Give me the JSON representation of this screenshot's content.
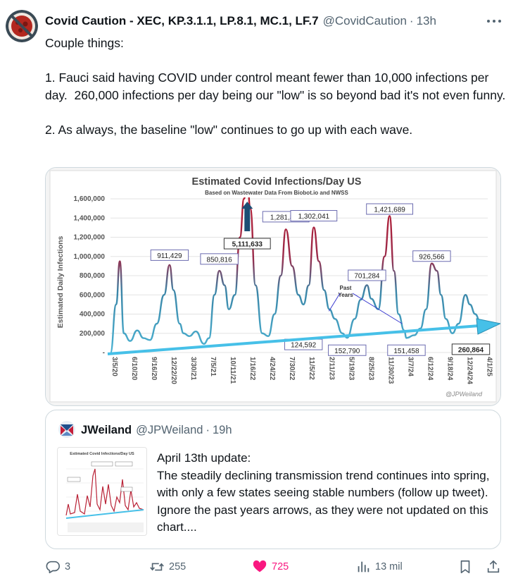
{
  "tweet": {
    "author_name": "Covid Caution - XEC, KP.3.1.1, LP.8.1, MC.1, LF.7",
    "author_handle": "@CovidCaution",
    "separator": "·",
    "timestamp": "13h",
    "text": "Couple things:\n\n1. Fauci said having COVID under control meant fewer than 10,000 infections per day.  260,000 infections per day being our \"low\" is so beyond bad it's not even funny.\n\n2. As always, the baseline \"low\" continues to go up with each wave."
  },
  "chart_data": {
    "type": "line",
    "title": "Estimated Covid Infections/Day US",
    "subtitle": "Based on Wastewater Data From Biobot.io and NWSS",
    "ylabel": "Estimated Daily Infections",
    "ylim": [
      0,
      1600000
    ],
    "yticks": [
      "1,600,000",
      "1,400,000",
      "1,200,000",
      "1,000,000",
      "800,000",
      "600,000",
      "400,000",
      "200,000",
      "-"
    ],
    "xticks": [
      "3/5/20",
      "6/10/20",
      "9/16/20",
      "12/22/20",
      "3/30/21",
      "7/5/21",
      "10/11/21",
      "1/16/22",
      "4/24/22",
      "7/30/22",
      "11/5/22",
      "2/11/23",
      "5/19/23",
      "8/25/23",
      "11/30/23",
      "3/7/24",
      "6/12/24",
      "9/18/24",
      "12/24/24",
      "4/1/25"
    ],
    "series": [
      {
        "x": [
          "3/5/20",
          "4/2/20",
          "4/20/20",
          "5/10/20",
          "6/10/20",
          "7/15/20",
          "8/15/20",
          "9/16/20",
          "10/20/20",
          "11/25/20",
          "12/22/20",
          "1/10/21",
          "2/10/21",
          "3/1/21",
          "3/30/21",
          "5/1/21",
          "6/10/21",
          "7/5/21",
          "8/1/21",
          "8/25/21",
          "9/20/21",
          "10/11/21",
          "11/10/21",
          "12/5/21",
          "12/25/21",
          "1/10/22",
          "1/25/22",
          "2/20/22",
          "3/25/22",
          "4/24/22",
          "5/25/22",
          "6/25/22",
          "7/20/22",
          "8/20/22",
          "9/20/22",
          "10/15/22",
          "11/10/22",
          "12/5/22",
          "12/30/22",
          "1/25/23",
          "2/20/23",
          "3/20/23",
          "4/25/23",
          "5/19/23",
          "6/25/23",
          "7/25/23",
          "8/25/23",
          "9/15/23",
          "10/20/23",
          "11/20/23",
          "12/15/23",
          "1/5/24",
          "1/28/24",
          "2/25/24",
          "3/7/24",
          "4/15/24",
          "5/15/24",
          "6/12/24",
          "7/10/24",
          "8/5/24",
          "8/25/24",
          "9/18/24",
          "10/20/24",
          "11/20/24",
          "12/24/24",
          "1/15/25",
          "2/10/25",
          "3/10/25",
          "4/1/25",
          "4/13/25"
        ],
        "values": [
          0,
          500000,
          950000,
          200000,
          120000,
          230000,
          150000,
          130000,
          300000,
          600000,
          911429,
          650000,
          300000,
          200000,
          170000,
          220000,
          90000,
          150000,
          600000,
          850816,
          700000,
          450000,
          600000,
          1200000,
          1600000,
          1800000,
          1500000,
          700000,
          200000,
          170000,
          400000,
          800000,
          1281837,
          900000,
          600000,
          500000,
          700000,
          1302041,
          950000,
          650000,
          450000,
          350000,
          200000,
          152790,
          350000,
          550000,
          701284,
          560000,
          450000,
          1000000,
          1421689,
          850000,
          400000,
          230000,
          151458,
          180000,
          250000,
          450000,
          926566,
          850000,
          600000,
          350000,
          200000,
          300000,
          600000,
          500000,
          400000,
          300000,
          270000,
          260864
        ]
      }
    ],
    "data_labels": [
      "911,429",
      "850,816",
      "5,111,633",
      "1,281,837",
      "1,302,041",
      "1,421,689",
      "701,284",
      "926,566",
      "124,592",
      "152,790",
      "151,458",
      "260,864"
    ],
    "annotation": "Past Years",
    "credit": "@JPWeiland",
    "trend": "baseline rising arrow",
    "colors": {
      "low": "#4bb3d3",
      "high": "#c0182b",
      "arrow": "#46c0e8",
      "big_arrow": "#1d4e74"
    }
  },
  "quote": {
    "author_name": "JWeiland",
    "author_handle": "@JPWeiland",
    "separator": "·",
    "timestamp": "19h",
    "text": "April 13th update:\nThe steadily declining transmission trend continues into spring, with only a few states seeing stable numbers (follow up tweet).  Ignore the past years arrows, as they were not updated on this chart...."
  },
  "actions": {
    "reply_count": "3",
    "retweet_count": "255",
    "like_count": "725",
    "view_count": "13 mil",
    "icons": [
      "reply-icon",
      "retweet-icon",
      "heart-icon",
      "views-icon",
      "bookmark-icon",
      "share-icon"
    ],
    "like_color": "#f91880"
  }
}
